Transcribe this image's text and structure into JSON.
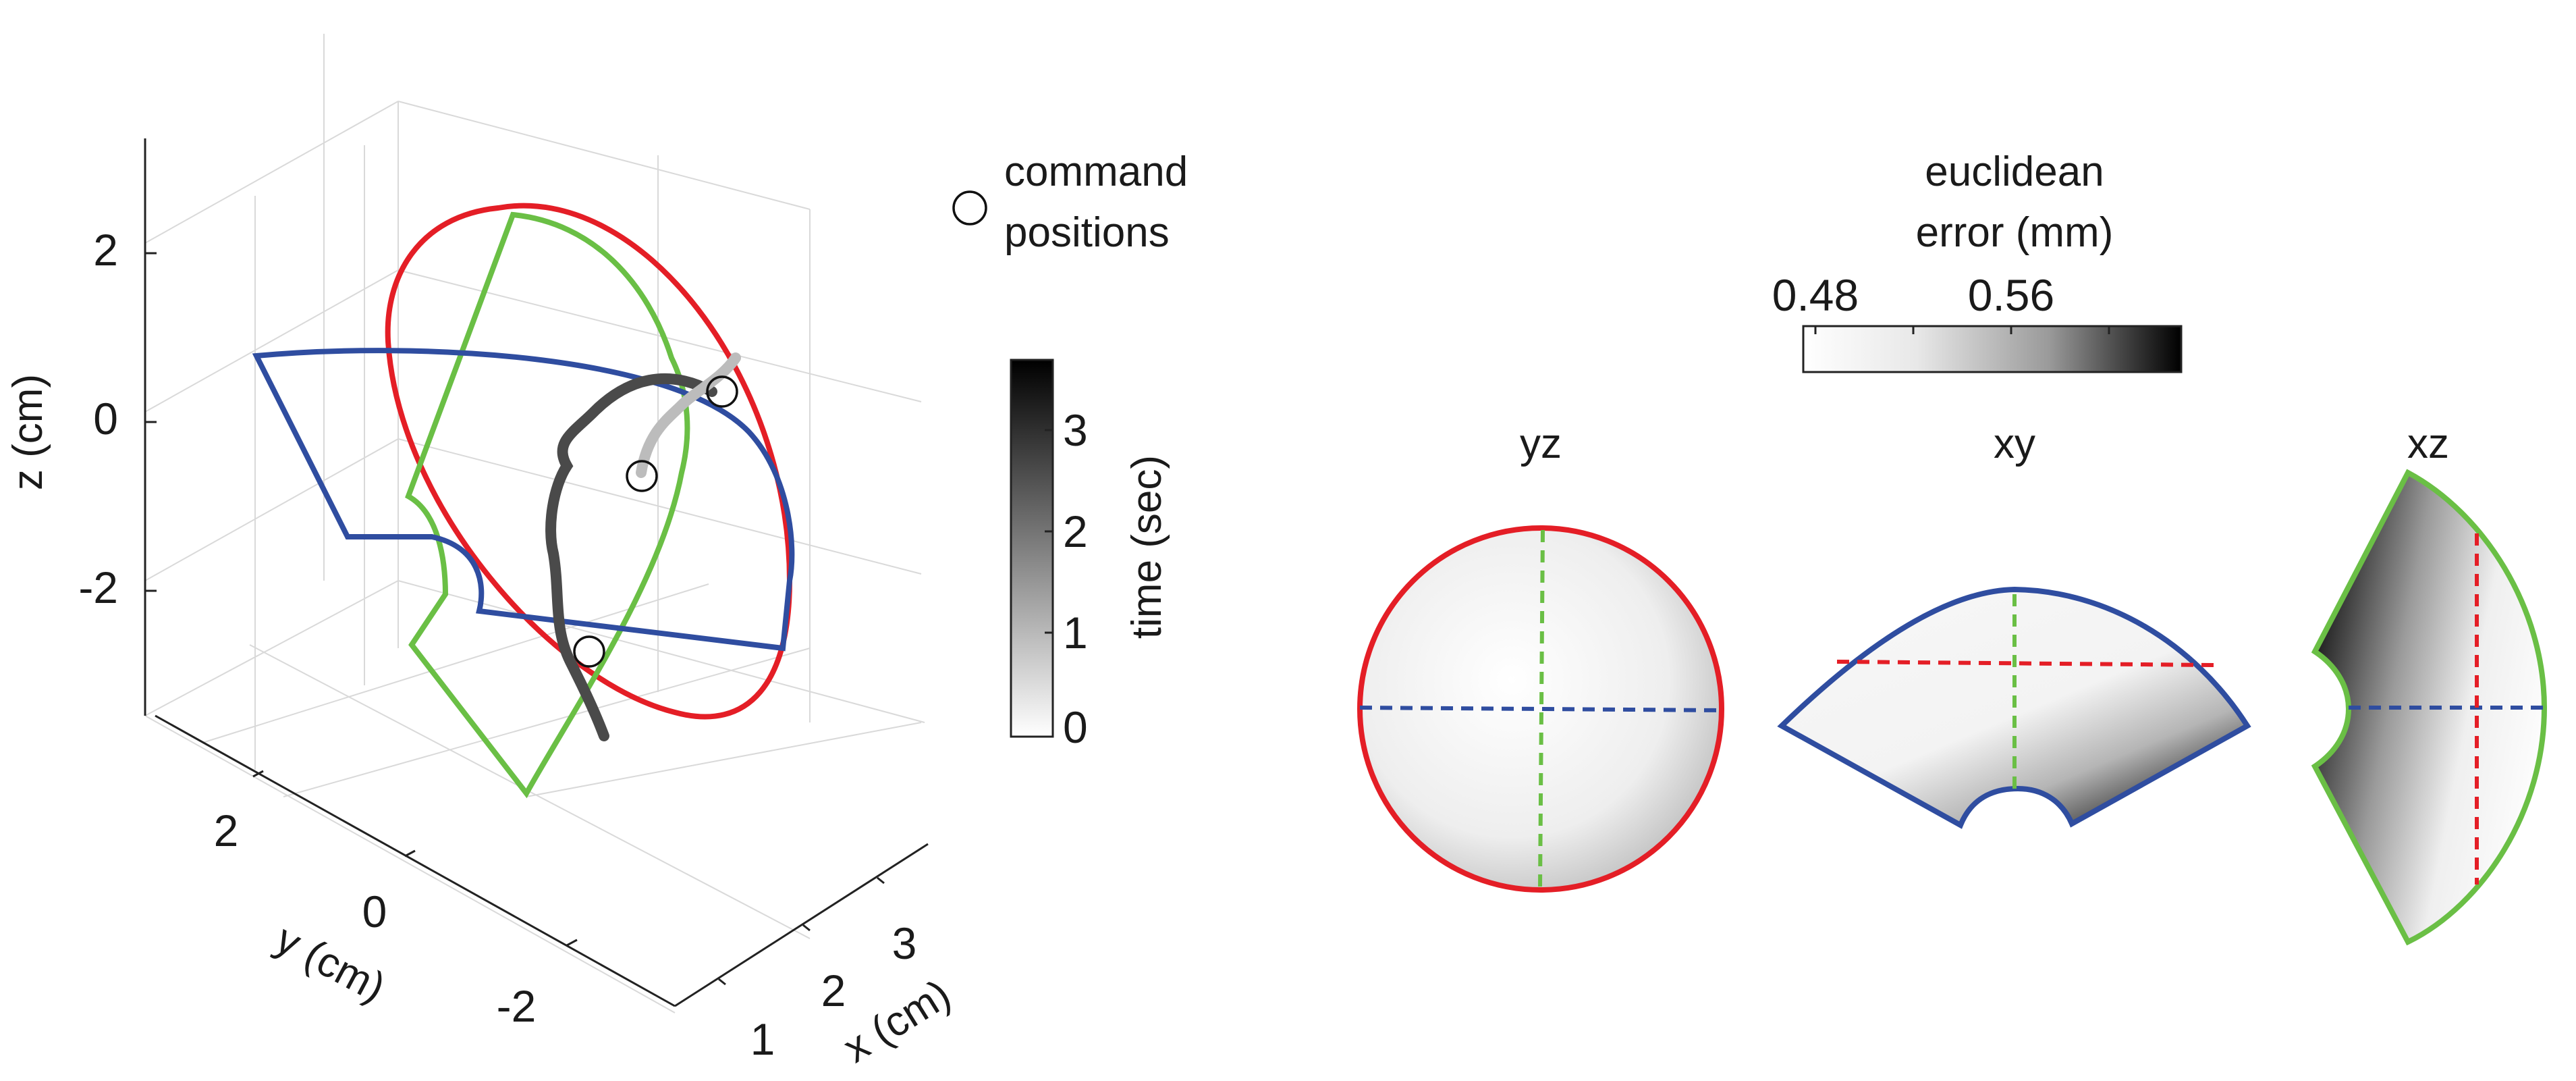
{
  "figure": {
    "panel3d": {
      "z_ticks": [
        "2",
        "0",
        "-2"
      ],
      "y_ticks": [
        "2",
        "0",
        "-2"
      ],
      "x_ticks": [
        "1",
        "2",
        "3"
      ],
      "z_label": "z (cm)",
      "y_label": "y (cm)",
      "x_label": "x (cm)"
    },
    "legend": {
      "marker_label_line1": "command",
      "marker_label_line2": "positions"
    },
    "time_colorbar": {
      "label": "time (sec)",
      "ticks": [
        "3",
        "2",
        "1",
        "0"
      ]
    },
    "error_colorbar": {
      "title_line1": "euclidean",
      "title_line2": "error (mm)",
      "ticks": [
        "0.48",
        "0.56"
      ]
    },
    "projections": {
      "yz": "yz",
      "xy": "xy",
      "xz": "xz"
    },
    "colors": {
      "red": "#e41e26",
      "blue": "#2f4da0",
      "green": "#6abf45",
      "trajectory_dark": "#4a4a4a",
      "trajectory_light": "#bcbcbc"
    }
  }
}
